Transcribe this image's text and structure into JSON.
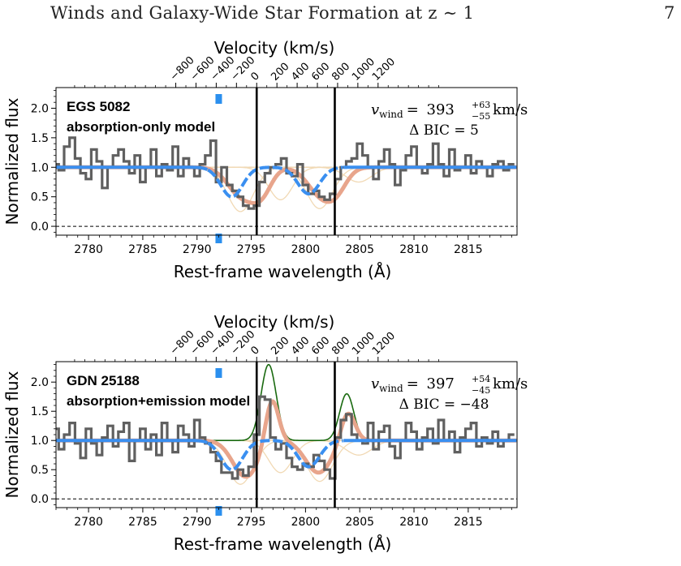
{
  "header": {
    "running_title": "Winds and Galaxy-Wide Star Formation at z ∼ 1",
    "page_number": "7"
  },
  "colors": {
    "data_step": "#606060",
    "absorption_fit": "#e8a58c",
    "component": "#f1d9b4",
    "emission": "#1a6a10",
    "systemic_model": "#3a8ff0",
    "marker": "#2b8fee",
    "vertical_lines": "#000000"
  },
  "chart_data": [
    {
      "type": "line",
      "panel_id": "top",
      "label_line1": "EGS 5082",
      "label_line2": "absorption-only model",
      "vwind_label": "v",
      "vwind_sub": "wind",
      "vwind_eq": "= ",
      "vwind_value": "393",
      "vwind_err_plus": "+63",
      "vwind_err_minus": "−55",
      "vwind_unit": "km/s",
      "bic_label": "Δ BIC = 5",
      "xlabel": "Rest-frame wavelength (Å)",
      "ylabel": "Normalized flux",
      "top_axis_label": "Velocity (km/s)",
      "xlim": [
        2777,
        2819.5
      ],
      "ylim": [
        -0.15,
        2.35
      ],
      "x_ticks": [
        2780,
        2785,
        2790,
        2795,
        2800,
        2805,
        2810,
        2815
      ],
      "x_tick_labels": [
        "2780",
        "2785",
        "2790",
        "2795",
        "2800",
        "2805",
        "2810",
        "2815"
      ],
      "y_ticks": [
        0.0,
        0.5,
        1.0,
        1.5,
        2.0
      ],
      "y_tick_labels": [
        "0.0",
        "0.5",
        "1.0",
        "1.5",
        "2.0"
      ],
      "velocity_ticks": [
        -800,
        -600,
        -400,
        -200,
        0,
        200,
        400,
        600,
        800,
        1000,
        1200
      ],
      "velocity_tick_labels": [
        "−800",
        "−600",
        "−400",
        "−200",
        "0",
        "200",
        "400",
        "600",
        "800",
        "1000",
        "1200"
      ],
      "velocity_reference_wavelength": 2795.5,
      "vertical_lines": [
        2795.5,
        2802.7
      ],
      "horizontal_dashed": [
        1.0,
        0.0
      ],
      "marker_x": 2792.0,
      "has_emission": false,
      "series": [
        {
          "kind": "data_step",
          "x": [
            2777.0,
            2777.5,
            2778.0,
            2778.5,
            2779.0,
            2779.5,
            2780.0,
            2780.5,
            2781.0,
            2781.5,
            2782.0,
            2782.5,
            2783.0,
            2783.5,
            2784.0,
            2784.5,
            2785.0,
            2785.5,
            2786.0,
            2786.5,
            2787.0,
            2787.5,
            2788.0,
            2788.5,
            2789.0,
            2789.5,
            2790.0,
            2790.5,
            2791.0,
            2791.5,
            2792.0,
            2792.5,
            2793.0,
            2793.5,
            2794.0,
            2794.5,
            2795.0,
            2795.5,
            2796.0,
            2796.5,
            2797.0,
            2797.5,
            2798.0,
            2798.5,
            2799.0,
            2799.5,
            2800.0,
            2800.5,
            2801.0,
            2801.5,
            2802.0,
            2802.5,
            2803.0,
            2803.5,
            2804.0,
            2804.5,
            2805.0,
            2805.5,
            2806.0,
            2806.5,
            2807.0,
            2807.5,
            2808.0,
            2808.5,
            2809.0,
            2809.5,
            2810.0,
            2810.5,
            2811.0,
            2811.5,
            2812.0,
            2812.5,
            2813.0,
            2813.5,
            2814.0,
            2814.5,
            2815.0,
            2815.5,
            2816.0,
            2816.5,
            2817.0,
            2817.5,
            2818.0,
            2818.5,
            2819.0
          ],
          "y": [
            1.05,
            0.95,
            1.35,
            1.5,
            1.15,
            0.9,
            0.8,
            1.3,
            1.1,
            0.65,
            1.0,
            1.2,
            1.3,
            1.1,
            0.9,
            1.2,
            0.75,
            1.0,
            1.3,
            0.85,
            1.05,
            0.95,
            1.35,
            0.85,
            1.15,
            1.0,
            0.85,
            1.05,
            1.2,
            1.45,
            0.75,
            1.0,
            0.7,
            0.6,
            0.5,
            0.35,
            0.3,
            0.35,
            0.75,
            0.9,
            1.0,
            1.05,
            1.15,
            0.9,
            0.85,
            1.05,
            0.7,
            0.55,
            0.6,
            0.5,
            0.45,
            0.55,
            0.8,
            1.0,
            1.1,
            1.15,
            1.4,
            1.2,
            1.0,
            0.8,
            1.1,
            1.3,
            1.05,
            0.7,
            0.95,
            1.2,
            1.35,
            1.0,
            0.9,
            1.05,
            1.4,
            1.05,
            0.85,
            1.3,
            0.95,
            1.0,
            1.2,
            0.9,
            1.1,
            1.0,
            0.85,
            1.05,
            1.1,
            0.95,
            1.05
          ]
        }
      ]
    },
    {
      "type": "line",
      "panel_id": "bottom",
      "label_line1": "GDN 25188",
      "label_line2": "absorption+emission model",
      "vwind_label": "v",
      "vwind_sub": "wind",
      "vwind_eq": "= ",
      "vwind_value": "397",
      "vwind_err_plus": "+54",
      "vwind_err_minus": "−45",
      "vwind_unit": "km/s",
      "bic_label": "Δ BIC = −48",
      "xlabel": "Rest-frame wavelength (Å)",
      "ylabel": "Normalized flux",
      "top_axis_label": "Velocity (km/s)",
      "xlim": [
        2777,
        2819.5
      ],
      "ylim": [
        -0.15,
        2.35
      ],
      "x_ticks": [
        2780,
        2785,
        2790,
        2795,
        2800,
        2805,
        2810,
        2815
      ],
      "x_tick_labels": [
        "2780",
        "2785",
        "2790",
        "2795",
        "2800",
        "2805",
        "2810",
        "2815"
      ],
      "y_ticks": [
        0.0,
        0.5,
        1.0,
        1.5,
        2.0
      ],
      "y_tick_labels": [
        "0.0",
        "0.5",
        "1.0",
        "1.5",
        "2.0"
      ],
      "velocity_ticks": [
        -800,
        -600,
        -400,
        -200,
        0,
        200,
        400,
        600,
        800,
        1000,
        1200
      ],
      "velocity_tick_labels": [
        "−800",
        "−600",
        "−400",
        "−200",
        "0",
        "200",
        "400",
        "600",
        "800",
        "1000",
        "1200"
      ],
      "velocity_reference_wavelength": 2795.5,
      "vertical_lines": [
        2795.5,
        2802.7
      ],
      "horizontal_dashed": [
        1.0,
        0.0
      ],
      "marker_x": 2792.0,
      "has_emission": true,
      "series": [
        {
          "kind": "data_step",
          "x": [
            2777.0,
            2777.5,
            2778.0,
            2778.5,
            2779.0,
            2779.5,
            2780.0,
            2780.5,
            2781.0,
            2781.5,
            2782.0,
            2782.5,
            2783.0,
            2783.5,
            2784.0,
            2784.5,
            2785.0,
            2785.5,
            2786.0,
            2786.5,
            2787.0,
            2787.5,
            2788.0,
            2788.5,
            2789.0,
            2789.5,
            2790.0,
            2790.5,
            2791.0,
            2791.5,
            2792.0,
            2792.5,
            2793.0,
            2793.5,
            2794.0,
            2794.5,
            2795.0,
            2795.5,
            2796.0,
            2796.5,
            2797.0,
            2797.5,
            2798.0,
            2798.5,
            2799.0,
            2799.5,
            2800.0,
            2800.5,
            2801.0,
            2801.5,
            2802.0,
            2802.5,
            2803.0,
            2803.5,
            2804.0,
            2804.5,
            2805.0,
            2805.5,
            2806.0,
            2806.5,
            2807.0,
            2807.5,
            2808.0,
            2808.5,
            2809.0,
            2809.5,
            2810.0,
            2810.5,
            2811.0,
            2811.5,
            2812.0,
            2812.5,
            2813.0,
            2813.5,
            2814.0,
            2814.5,
            2815.0,
            2815.5,
            2816.0,
            2816.5,
            2817.0,
            2817.5,
            2818.0,
            2818.5,
            2819.0
          ],
          "y": [
            1.2,
            0.85,
            1.1,
            1.3,
            0.95,
            0.7,
            1.2,
            0.95,
            0.75,
            1.05,
            1.25,
            0.9,
            1.15,
            1.3,
            0.65,
            1.0,
            1.2,
            0.85,
            1.1,
            0.75,
            1.3,
            1.0,
            0.8,
            1.25,
            1.1,
            0.9,
            1.35,
            1.05,
            0.95,
            0.8,
            0.65,
            0.45,
            0.45,
            0.35,
            0.5,
            0.4,
            0.55,
            1.1,
            1.75,
            1.7,
            1.05,
            0.85,
            0.95,
            0.7,
            0.55,
            0.5,
            0.6,
            0.55,
            0.75,
            0.65,
            0.5,
            0.35,
            1.05,
            1.35,
            1.45,
            1.1,
            1.0,
            0.95,
            1.3,
            0.85,
            1.15,
            1.25,
            0.9,
            0.7,
            1.0,
            1.3,
            1.15,
            0.85,
            1.05,
            1.2,
            0.95,
            1.35,
            1.0,
            1.15,
            0.8,
            1.05,
            1.2,
            1.3,
            0.9,
            1.05,
            0.95,
            1.15,
            0.9,
            1.0,
            1.1
          ]
        }
      ]
    }
  ]
}
